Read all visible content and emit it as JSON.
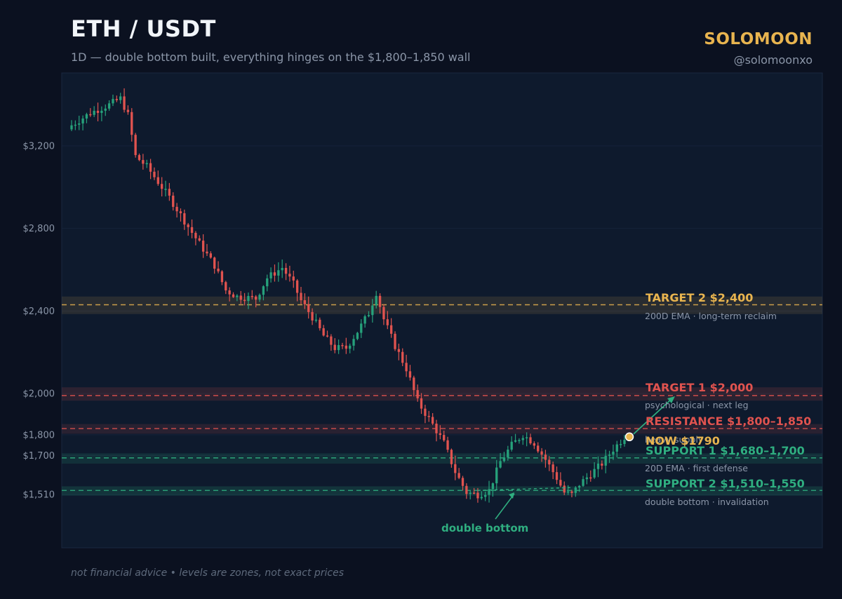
{
  "header": {
    "title": "ETH / USDT",
    "subtitle": "1D  —  double bottom built, everything hinges on the $1,800–1,850 wall",
    "brand": "SOLOMOON",
    "handle": "@solomoonxo"
  },
  "footer": {
    "note": "not financial advice  •  levels are zones, not exact prices"
  },
  "colors": {
    "background": "#0b1120",
    "panel": "#0e1a2d",
    "up": "#26a17b",
    "down": "#e0534f",
    "target2": "#e8b44f",
    "target1": "#e0534f",
    "resistance": "#e0534f",
    "support": "#2fae80",
    "now": "#e8b44f"
  },
  "chart_data": {
    "type": "candlestick",
    "timeframe": "1D",
    "ylim": [
      1250,
      3550
    ],
    "y_ticks": [
      {
        "value": 1510,
        "label": "$1,510"
      },
      {
        "value": 1700,
        "label": "$1,700"
      },
      {
        "value": 1800,
        "label": "$1,800"
      },
      {
        "value": 2000,
        "label": "$2,000"
      },
      {
        "value": 2400,
        "label": "$2,400"
      },
      {
        "value": 2800,
        "label": "$2,800"
      },
      {
        "value": 3200,
        "label": "$3,200"
      }
    ],
    "path_points": [
      [
        0,
        3300
      ],
      [
        5,
        3360
      ],
      [
        10,
        3400
      ],
      [
        13,
        3430
      ],
      [
        15,
        3350
      ],
      [
        17,
        3150
      ],
      [
        20,
        3100
      ],
      [
        26,
        2950
      ],
      [
        32,
        2780
      ],
      [
        38,
        2620
      ],
      [
        41,
        2500
      ],
      [
        44,
        2470
      ],
      [
        49,
        2460
      ],
      [
        52,
        2560
      ],
      [
        56,
        2610
      ],
      [
        59,
        2530
      ],
      [
        61,
        2450
      ],
      [
        64,
        2370
      ],
      [
        67,
        2280
      ],
      [
        70,
        2220
      ],
      [
        73,
        2220
      ],
      [
        76,
        2300
      ],
      [
        79,
        2390
      ],
      [
        81,
        2490
      ],
      [
        83,
        2360
      ],
      [
        86,
        2230
      ],
      [
        89,
        2120
      ],
      [
        92,
        1960
      ],
      [
        96,
        1850
      ],
      [
        99,
        1760
      ],
      [
        102,
        1620
      ],
      [
        105,
        1520
      ],
      [
        108,
        1510
      ],
      [
        111,
        1530
      ],
      [
        114,
        1670
      ],
      [
        117,
        1750
      ],
      [
        120,
        1800
      ],
      [
        123,
        1760
      ],
      [
        126,
        1680
      ],
      [
        129,
        1590
      ],
      [
        131,
        1520
      ],
      [
        133,
        1510
      ],
      [
        135,
        1560
      ],
      [
        138,
        1610
      ],
      [
        141,
        1660
      ],
      [
        144,
        1730
      ],
      [
        147,
        1790
      ]
    ],
    "levels": [
      {
        "name": "target2",
        "label": "TARGET 2    $2,400",
        "note": "200D EMA · long-term reclaim",
        "line": 2430,
        "zone": [
          2385,
          2470
        ]
      },
      {
        "name": "target1",
        "label": "TARGET 1    $2,000",
        "note": "psychological · next leg",
        "line": 1990,
        "zone": [
          1965,
          2030
        ]
      },
      {
        "name": "resistance",
        "label": "RESISTANCE  $1,800–1,850",
        "note": "heavy supply",
        "line": 1830,
        "zone": [
          1805,
          1852
        ]
      },
      {
        "name": "support1",
        "label": "SUPPORT 1   $1,680–1,700",
        "note": "20D EMA · first defense",
        "line": 1688,
        "zone": [
          1660,
          1710
        ]
      },
      {
        "name": "support2",
        "label": "SUPPORT 2   $1,510–1,550",
        "note": "double bottom · invalidation",
        "line": 1530,
        "zone": [
          1505,
          1550
        ]
      }
    ],
    "now": {
      "label": "NOW  $1790",
      "value": 1790
    },
    "annotations": [
      {
        "label": "double bottom",
        "points": [
          [
            108,
            1510
          ],
          [
            133,
            1510
          ]
        ]
      }
    ]
  }
}
